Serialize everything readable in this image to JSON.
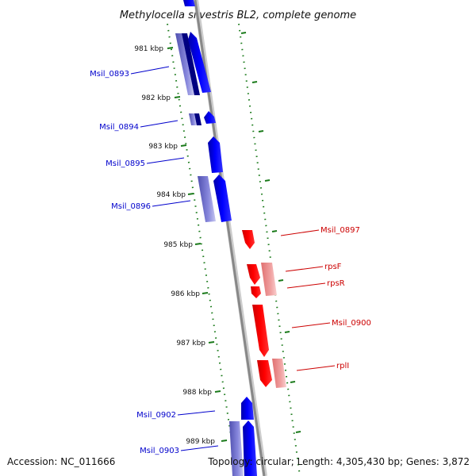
{
  "title": "Methylocella silvestris BL2, complete genome",
  "accession": "Accession: NC_011666",
  "topology": "Topology: circular; Length: 4,305,430 bp; Genes: 3,872",
  "colors": {
    "forward_strand": "#0000ff",
    "reverse_strand": "#ff0000",
    "backbone": "#888888",
    "ticks": "#1a7a1a"
  },
  "ticks": [
    {
      "label": "981 kbp"
    },
    {
      "label": "982 kbp"
    },
    {
      "label": "983 kbp"
    },
    {
      "label": "984 kbp"
    },
    {
      "label": "985 kbp"
    },
    {
      "label": "986 kbp"
    },
    {
      "label": "987 kbp"
    },
    {
      "label": "988 kbp"
    },
    {
      "label": "989 kbp"
    }
  ],
  "genes_forward": [
    {
      "label": "Msil_0893"
    },
    {
      "label": "Msil_0894"
    },
    {
      "label": "Msil_0895"
    },
    {
      "label": "Msil_0896"
    },
    {
      "label": "Msil_0902"
    },
    {
      "label": "Msil_0903"
    }
  ],
  "genes_reverse": [
    {
      "label": "Msil_0897"
    },
    {
      "label": "rpsF"
    },
    {
      "label": "rpsR"
    },
    {
      "label": "Msil_0900"
    },
    {
      "label": "rplI"
    }
  ]
}
